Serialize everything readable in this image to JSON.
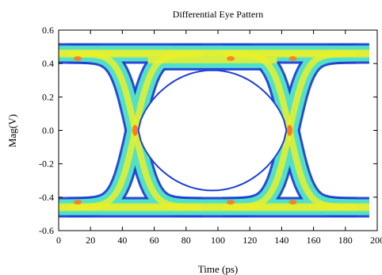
{
  "chart_data": {
    "type": "line",
    "title": "Differential Eye Pattern",
    "xlabel": "Time (ps)",
    "ylabel": "Mag(V)",
    "xlim": [
      0,
      200
    ],
    "ylim": [
      -0.6,
      0.6
    ],
    "x_ticks": [
      0,
      20,
      40,
      60,
      80,
      100,
      120,
      140,
      160,
      180,
      200
    ],
    "x_tick_labels": [
      "0",
      "20",
      "40",
      "60",
      "80",
      "100",
      "120",
      "140",
      "160",
      "180",
      "200"
    ],
    "y_ticks": [
      -0.6,
      -0.4,
      -0.2,
      0.0,
      0.2,
      0.4,
      0.6
    ],
    "y_tick_labels": [
      "-0.6",
      "-0.4",
      "-0.2",
      "0.0",
      "0.2",
      "0.4",
      "0.6"
    ],
    "grid": false,
    "legend": "none",
    "eye": {
      "high_level": 0.46,
      "low_level": -0.46,
      "high_band": [
        0.37,
        0.49
      ],
      "low_band": [
        -0.49,
        -0.37
      ],
      "crossings_x": [
        48,
        145
      ],
      "crossing_y": 0.0,
      "eye_opening_max": 0.36,
      "x_range": [
        0,
        195
      ]
    },
    "density_colors": {
      "low": "#1f3fd6",
      "mid": "#53e0c8",
      "high": "#e9f02a",
      "peak": "#ff7a1a"
    }
  }
}
